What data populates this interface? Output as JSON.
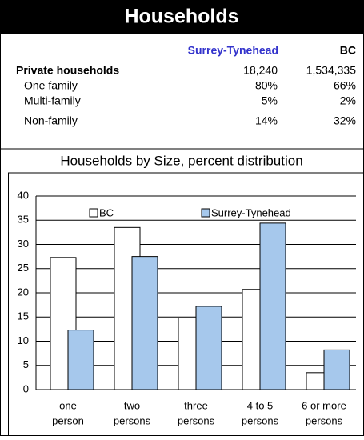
{
  "header": {
    "title": "Households"
  },
  "table": {
    "columns": [
      "Surrey-Tynehead",
      "BC"
    ],
    "rows": [
      [
        "Private households",
        "18,240",
        "1,534,335"
      ],
      [
        "One family",
        "80%",
        "66%"
      ],
      [
        "Multi-family",
        "5%",
        "2%"
      ],
      [
        "Non-family",
        "14%",
        "32%"
      ]
    ]
  },
  "chart_data": {
    "type": "bar",
    "title": "Households by Size, percent distribution",
    "categories": [
      [
        "one",
        "person"
      ],
      [
        "two",
        "persons"
      ],
      [
        "three",
        "persons"
      ],
      [
        "4 to 5",
        "persons"
      ],
      [
        "6 or  more",
        "persons"
      ]
    ],
    "series": [
      {
        "name": "BC",
        "color": "#ffffff",
        "values": [
          27.3,
          33.5,
          14.8,
          20.7,
          3.5
        ]
      },
      {
        "name": "Surrey-Tynehead",
        "color": "#a6c8ec",
        "values": [
          12.3,
          27.5,
          17.2,
          34.4,
          8.2
        ]
      }
    ],
    "ylim": [
      0,
      40
    ],
    "yticks": [
      0,
      5,
      10,
      15,
      20,
      25,
      30,
      35,
      40
    ],
    "grid": true,
    "legend": "top"
  }
}
